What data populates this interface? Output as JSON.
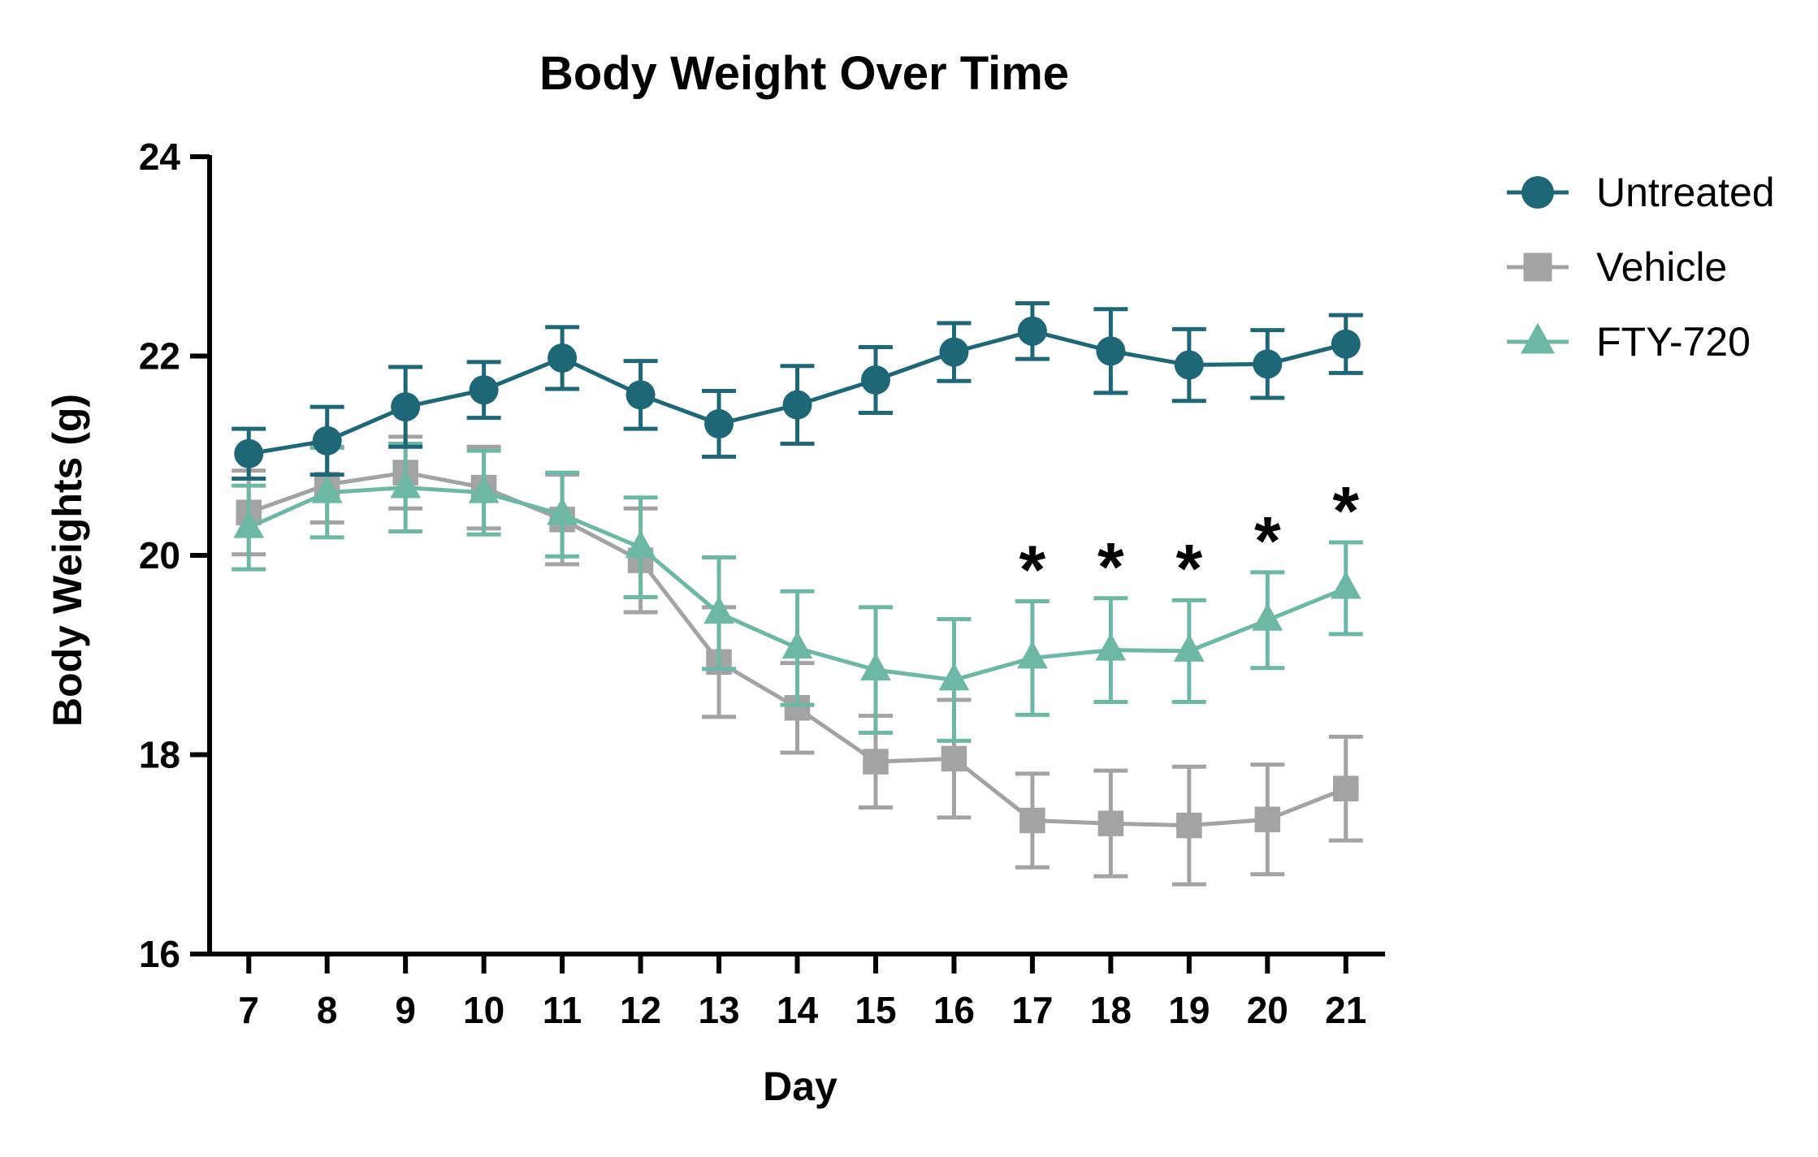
{
  "chart_data": {
    "type": "line",
    "title": "Body Weight Over Time",
    "xlabel": "Day",
    "ylabel": "Body Weights (g)",
    "x": [
      7,
      8,
      9,
      10,
      11,
      12,
      13,
      14,
      15,
      16,
      17,
      18,
      19,
      20,
      21
    ],
    "xlim": [
      6.5,
      21.5
    ],
    "ylim": [
      16,
      24
    ],
    "yticks": [
      16,
      18,
      20,
      22,
      24
    ],
    "grid": false,
    "legend_position": "top-right",
    "error_bars": true,
    "series": [
      {
        "name": "Untreated",
        "color": "#1d6777",
        "marker": "circle",
        "values": [
          21.02,
          21.15,
          21.49,
          21.66,
          21.98,
          21.61,
          21.32,
          21.51,
          21.76,
          22.04,
          22.25,
          22.05,
          21.91,
          21.92,
          22.12
        ],
        "errors": [
          0.25,
          0.34,
          0.4,
          0.28,
          0.31,
          0.34,
          0.33,
          0.39,
          0.33,
          0.29,
          0.28,
          0.42,
          0.36,
          0.34,
          0.29
        ]
      },
      {
        "name": "Vehicle",
        "color": "#a3a3a3",
        "marker": "square",
        "values": [
          20.43,
          20.71,
          20.83,
          20.68,
          20.36,
          19.95,
          18.93,
          18.47,
          17.93,
          17.96,
          17.34,
          17.31,
          17.29,
          17.35,
          17.66
        ],
        "errors": [
          0.42,
          0.38,
          0.36,
          0.41,
          0.45,
          0.52,
          0.55,
          0.45,
          0.46,
          0.59,
          0.47,
          0.53,
          0.59,
          0.55,
          0.52
        ]
      },
      {
        "name": "FTY-720",
        "color": "#6db8a4",
        "marker": "triangle",
        "values": [
          20.28,
          20.63,
          20.68,
          20.63,
          20.41,
          20.08,
          19.42,
          19.07,
          18.85,
          18.75,
          18.97,
          19.05,
          19.04,
          19.35,
          19.67
        ],
        "errors": [
          0.42,
          0.45,
          0.44,
          0.42,
          0.42,
          0.5,
          0.56,
          0.57,
          0.63,
          0.61,
          0.57,
          0.52,
          0.51,
          0.48,
          0.46
        ]
      }
    ],
    "annotations": [
      {
        "text": "*",
        "x": 17
      },
      {
        "text": "*",
        "x": 18
      },
      {
        "text": "*",
        "x": 19
      },
      {
        "text": "*",
        "x": 20
      },
      {
        "text": "*",
        "x": 21
      }
    ]
  }
}
